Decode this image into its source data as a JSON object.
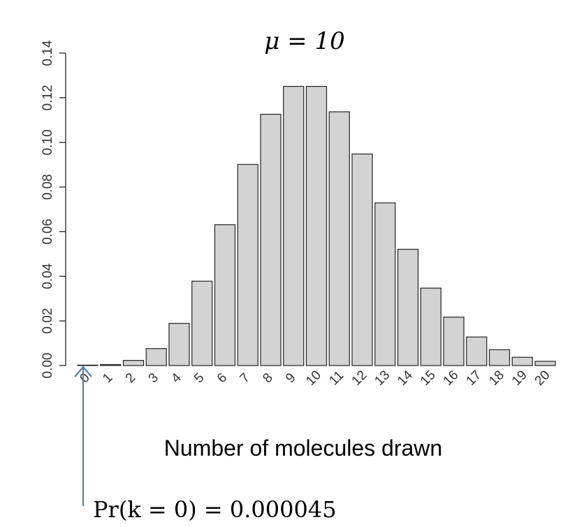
{
  "chart_data": {
    "type": "bar",
    "title": "μ = 10",
    "xlabel": "Number of molecules drawn",
    "ylabel": "",
    "ylim": [
      0,
      0.14
    ],
    "yticks": [
      "0.00",
      "0.02",
      "0.04",
      "0.06",
      "0.08",
      "0.10",
      "0.12",
      "0.14"
    ],
    "categories": [
      "0",
      "1",
      "2",
      "3",
      "4",
      "5",
      "6",
      "7",
      "8",
      "9",
      "10",
      "11",
      "12",
      "13",
      "14",
      "15",
      "16",
      "17",
      "18",
      "19",
      "20"
    ],
    "values": [
      4.5e-05,
      0.00045,
      0.0023,
      0.0076,
      0.0189,
      0.0378,
      0.0631,
      0.0901,
      0.1126,
      0.1251,
      0.1251,
      0.1137,
      0.0948,
      0.0729,
      0.0521,
      0.0347,
      0.0217,
      0.0128,
      0.0071,
      0.0037,
      0.0019
    ],
    "bar_color": "#d3d3d3",
    "annotation": {
      "text": "Pr(k = 0) = 0.000045",
      "arrow_color": "#5b7fa6",
      "target_category": "0"
    },
    "grid": false
  }
}
